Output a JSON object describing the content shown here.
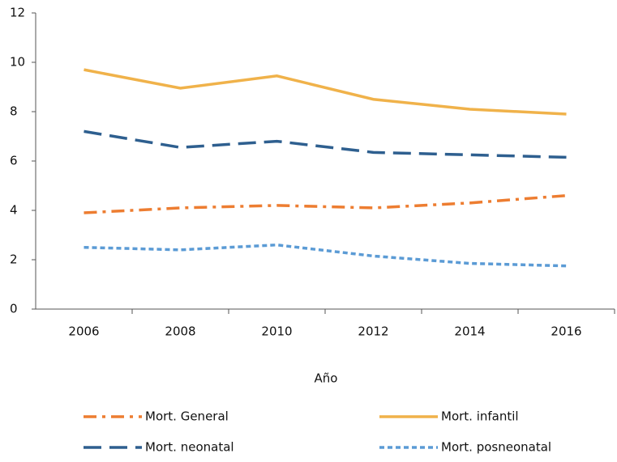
{
  "chart_data": {
    "type": "line",
    "x_label": "Año",
    "categories": [
      "2006",
      "2008",
      "2010",
      "2012",
      "2014",
      "2016"
    ],
    "series": [
      {
        "name": "Mort. General",
        "color": "#ed7d31",
        "dash": "dashdot",
        "values": [
          3.9,
          4.1,
          4.2,
          4.1,
          4.3,
          4.6
        ]
      },
      {
        "name": "Mort. infantil",
        "color": "#f0b24a",
        "dash": "solid",
        "values": [
          9.7,
          8.95,
          9.45,
          8.5,
          8.1,
          7.9
        ]
      },
      {
        "name": "Mort. neonatal",
        "color": "#2e5f8f",
        "dash": "dash",
        "values": [
          7.2,
          6.55,
          6.8,
          6.35,
          6.25,
          6.15
        ]
      },
      {
        "name": "Mort. posneonatal",
        "color": "#5b9bd5",
        "dash": "dot",
        "values": [
          2.5,
          2.4,
          2.6,
          2.15,
          1.85,
          1.75
        ]
      }
    ],
    "ylim": [
      0,
      12
    ],
    "yticks": [
      0,
      2,
      4,
      6,
      8,
      10,
      12
    ],
    "grid": false,
    "legend": "bottom"
  }
}
